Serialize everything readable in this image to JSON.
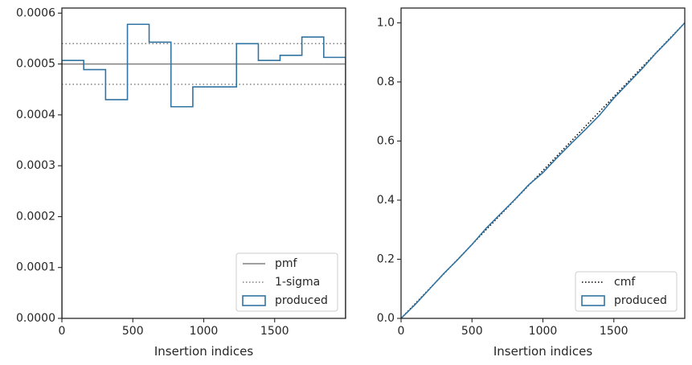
{
  "chart_data": [
    {
      "type": "histogram",
      "xlabel": "Insertion indices",
      "ylabel": "",
      "xlim": [
        0,
        2000
      ],
      "ylim": [
        0,
        0.00061
      ],
      "xticks": [
        0,
        500,
        1000,
        1500
      ],
      "xtick_labels": [
        "0",
        "500",
        "1000",
        "1500"
      ],
      "yticks": [
        0,
        0.0001,
        0.0002,
        0.0003,
        0.0004,
        0.0005,
        0.0006
      ],
      "ytick_labels": [
        "0.0000",
        "0.0001",
        "0.0002",
        "0.0003",
        "0.0004",
        "0.0005",
        "0.0006"
      ],
      "grid": false,
      "legend_position": "lower-right",
      "hlines": [
        {
          "name": "pmf",
          "y": 0.0005,
          "style": "solid",
          "color": "#808080"
        },
        {
          "name": "1-sigma",
          "y": 0.00054,
          "style": "dotted",
          "color": "#808080"
        },
        {
          "name": "",
          "y": 0.00046,
          "style": "dotted",
          "color": "#808080"
        }
      ],
      "series": [
        {
          "name": "produced",
          "style": "step",
          "color": "#3274a1",
          "bin_edges": [
            0,
            154,
            308,
            462,
            615,
            769,
            923,
            1077,
            1231,
            1385,
            1538,
            1692,
            1846,
            2000
          ],
          "values": [
            0.000507,
            0.000489,
            0.00043,
            0.000578,
            0.000543,
            0.000416,
            0.000455,
            0.000455,
            0.00054,
            0.000507,
            0.000517,
            0.000553,
            0.000513
          ]
        }
      ],
      "legend": [
        {
          "label": "pmf",
          "kind": "solid"
        },
        {
          "label": "1-sigma",
          "kind": "dotted"
        },
        {
          "label": "produced",
          "kind": "box"
        }
      ]
    },
    {
      "type": "line",
      "xlabel": "Insertion indices",
      "ylabel": "",
      "xlim": [
        0,
        2000
      ],
      "ylim": [
        0,
        1.05
      ],
      "xticks": [
        0,
        500,
        1000,
        1500
      ],
      "xtick_labels": [
        "0",
        "500",
        "1000",
        "1500"
      ],
      "yticks": [
        0,
        0.2,
        0.4,
        0.6,
        0.8,
        1.0
      ],
      "ytick_labels": [
        "0.0",
        "0.2",
        "0.4",
        "0.6",
        "0.8",
        "1.0"
      ],
      "grid": false,
      "legend_position": "lower-right",
      "series": [
        {
          "name": "cmf",
          "style": "dotted",
          "color": "#000000",
          "x": [
            0,
            2000
          ],
          "y": [
            0,
            1
          ]
        },
        {
          "name": "produced",
          "style": "step",
          "color": "#3274a1",
          "x": [
            0,
            100,
            200,
            300,
            400,
            500,
            600,
            700,
            800,
            900,
            1000,
            1100,
            1200,
            1300,
            1400,
            1500,
            1600,
            1700,
            1800,
            1900,
            2000
          ],
          "y": [
            0,
            0.047,
            0.099,
            0.151,
            0.199,
            0.25,
            0.305,
            0.353,
            0.401,
            0.452,
            0.493,
            0.544,
            0.592,
            0.639,
            0.688,
            0.745,
            0.795,
            0.845,
            0.899,
            0.948,
            1.0
          ]
        }
      ],
      "legend": [
        {
          "label": "cmf",
          "kind": "dotted"
        },
        {
          "label": "produced",
          "kind": "box"
        }
      ]
    }
  ]
}
